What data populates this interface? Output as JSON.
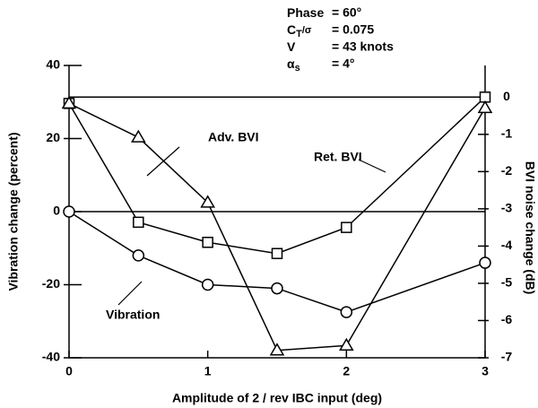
{
  "chart_data": {
    "type": "line",
    "xlabel": "Amplitude of 2 / rev IBC input (deg)",
    "ylabel": "Vibration change (percent)",
    "y2label": "BVI noise change (dB)",
    "annotations": [
      {
        "label": "Phase",
        "value": "= 60°"
      },
      {
        "label": "C",
        "sub": "T",
        "suffix": "/σ",
        "value": "= 0.075"
      },
      {
        "label": "V",
        "value": "= 43 knots"
      },
      {
        "label": "α",
        "sub": "s",
        "value": "= 4°"
      }
    ],
    "x": [
      0,
      0.5,
      1,
      1.5,
      2,
      3
    ],
    "xlim": [
      0,
      3
    ],
    "xticks": [
      0,
      1,
      2,
      3
    ],
    "ylim": [
      -40,
      40
    ],
    "yticks": [
      40,
      20,
      0,
      -20,
      -40
    ],
    "y2lim": [
      -7,
      0.85
    ],
    "y2ticks": [
      0,
      -1,
      -2,
      -3,
      -4,
      -5,
      -6,
      -7
    ],
    "series": [
      {
        "name": "Vibration",
        "marker": "circle",
        "color": "#000",
        "axis": "y",
        "values": [
          0,
          -12,
          -20,
          -21,
          -27.5,
          -14
        ]
      },
      {
        "name": "Ret. BVI",
        "marker": "square",
        "color": "#000",
        "axis": "y2",
        "values": [
          -0.17,
          -3.36,
          -3.9,
          -4.2,
          -3.5,
          0
        ]
      },
      {
        "name": "Adv. BVI",
        "marker": "triangle",
        "color": "#000",
        "axis": "y2",
        "values": [
          -0.17,
          -1.08,
          -2.83,
          -6.8,
          -6.67,
          -0.29
        ]
      }
    ]
  }
}
